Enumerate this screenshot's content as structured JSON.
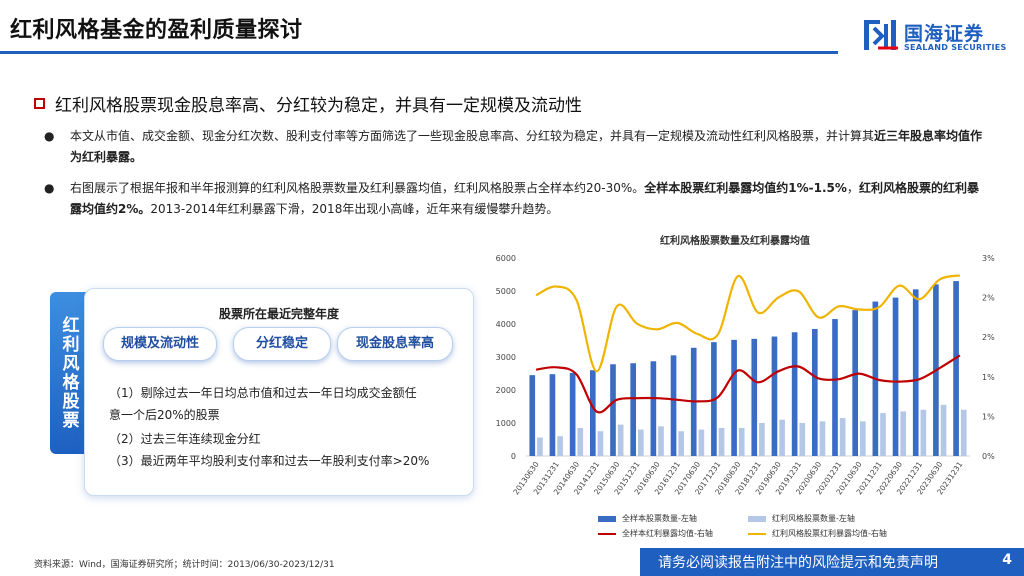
{
  "page": {
    "title": "红利风格基金的盈利质量探讨",
    "heading": "红利风格股票现金股息率高、分红较为稳定，并具有一定规模及流动性",
    "page_number": "4"
  },
  "logo": {
    "cn": "国海证券",
    "en": "SEALAND SECURITIES"
  },
  "bullets": [
    {
      "text": "本文从市值、成交金额、现金分红次数、股利支付率等方面筛选了一些现金股息率高、分红较为稳定，并具有一定规模及流动性红利风格股票，并计算其",
      "bold": "近三年股息率均值作为红利暴露。"
    },
    {
      "text1": "右图展示了根据年报和半年报测算的红利风格股票数量及红利暴露均值，红利风格股票占全样本约20-30%。",
      "bold1": "全样本股票红利暴露均值约1%-1.5%",
      "text2": "，",
      "bold2": "红利风格股票的红利暴露均值约2%。",
      "text3": "2013-2014年红利暴露下滑，2018年出现小高峰，近年来有缓慢攀升趋势。"
    }
  ],
  "panel": {
    "side_label": "红利风格股票",
    "title": "股票所在最近完整年度",
    "pills": [
      "规模及流动性",
      "分红稳定",
      "现金股息率高"
    ],
    "criteria": [
      "（1）剔除过去一年日均总市值和过去一年日均成交金额任",
      "意一个后20%的股票",
      "（2）过去三年连续现金分红",
      "（3）最近两年平均股利支付率和过去一年股利支付率>20%"
    ]
  },
  "chart_data": {
    "type": "bar",
    "title": "红利风格股票数量及红利暴露均值",
    "categories": [
      "20130630",
      "20131231",
      "20140630",
      "20141231",
      "20150630",
      "20151231",
      "20160630",
      "20161231",
      "20170630",
      "20171231",
      "20180630",
      "20181231",
      "20190630",
      "20191231",
      "20200630",
      "20201231",
      "20210630",
      "20211231",
      "20220630",
      "20221231",
      "20230630",
      "20231231"
    ],
    "left_axis": {
      "ylim": [
        0,
        6000
      ],
      "ticks": [
        "0",
        "1000",
        "2000",
        "3000",
        "4000",
        "5000",
        "6000"
      ]
    },
    "right_axis": {
      "ylim": [
        0,
        0.025
      ],
      "ticks": [
        "0%",
        "1%",
        "1%",
        "2%",
        "2%",
        "3%"
      ]
    },
    "series": [
      {
        "name": "全样本股票数量-左轴",
        "kind": "bar",
        "color": "#3a6cc4",
        "values": [
          2450,
          2480,
          2520,
          2600,
          2780,
          2810,
          2870,
          3050,
          3280,
          3450,
          3520,
          3550,
          3620,
          3750,
          3850,
          4150,
          4420,
          4680,
          4800,
          5050,
          5200,
          5300
        ]
      },
      {
        "name": "红利风格股票数量-左轴",
        "kind": "bar",
        "color": "#b4c7e7",
        "values": [
          560,
          600,
          850,
          750,
          950,
          800,
          900,
          750,
          800,
          850,
          850,
          1000,
          1100,
          1000,
          1050,
          1150,
          1050,
          1300,
          1350,
          1400,
          1550,
          1400
        ]
      },
      {
        "name": "全样本红利暴露均值-右轴",
        "kind": "line",
        "color": "#c00000",
        "values": [
          0.0109,
          0.0112,
          0.0103,
          0.0056,
          0.0071,
          0.0073,
          0.0073,
          0.0071,
          0.0069,
          0.0074,
          0.0108,
          0.0093,
          0.0107,
          0.0113,
          0.0098,
          0.0097,
          0.0104,
          0.0096,
          0.0094,
          0.0097,
          0.0111,
          0.0127
        ]
      },
      {
        "name": "红利风格股票红利暴露均值-右轴",
        "kind": "line",
        "color": "#f0b400",
        "values": [
          0.0203,
          0.0214,
          0.0197,
          0.0107,
          0.0189,
          0.0167,
          0.016,
          0.0168,
          0.0154,
          0.0153,
          0.0227,
          0.0181,
          0.02,
          0.0208,
          0.0175,
          0.0189,
          0.0185,
          0.0188,
          0.0215,
          0.0198,
          0.0223,
          0.0228
        ]
      }
    ]
  },
  "footer": {
    "source": "资料来源：Wind，国海证券研究所；统计时间：2013/06/30-2023/12/31",
    "disclaimer": "请务必阅读报告附注中的风险提示和免责声明"
  }
}
